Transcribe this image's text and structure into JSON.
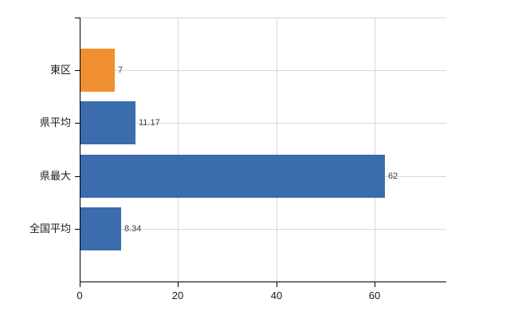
{
  "chart_data": {
    "type": "bar",
    "orientation": "horizontal",
    "title": "",
    "xlabel": "",
    "ylabel": "",
    "categories": [
      "東区",
      "県平均",
      "県最大",
      "全国平均"
    ],
    "values": [
      7,
      11.17,
      62,
      8.34
    ],
    "value_labels": [
      "7",
      "11.17",
      "62",
      "8.34"
    ],
    "bar_colors": [
      "#EF8F2F",
      "#3B6CAD",
      "#3B6CAD",
      "#3B6CAD"
    ],
    "x_ticks": [
      0,
      20,
      40,
      60
    ],
    "x_tick_labels": [
      "0",
      "20",
      "40",
      "60"
    ],
    "xlim": [
      0,
      74.6
    ],
    "grid": true,
    "legend": false
  },
  "colors": {
    "highlight_bar": "#EF8F2F",
    "default_bar": "#3B6CAD",
    "gridline": "#D7D7D7",
    "axis": "#000000",
    "category_text": "#1A1A1A",
    "value_text": "#3C3C3C",
    "background": "#FFFFFF"
  }
}
